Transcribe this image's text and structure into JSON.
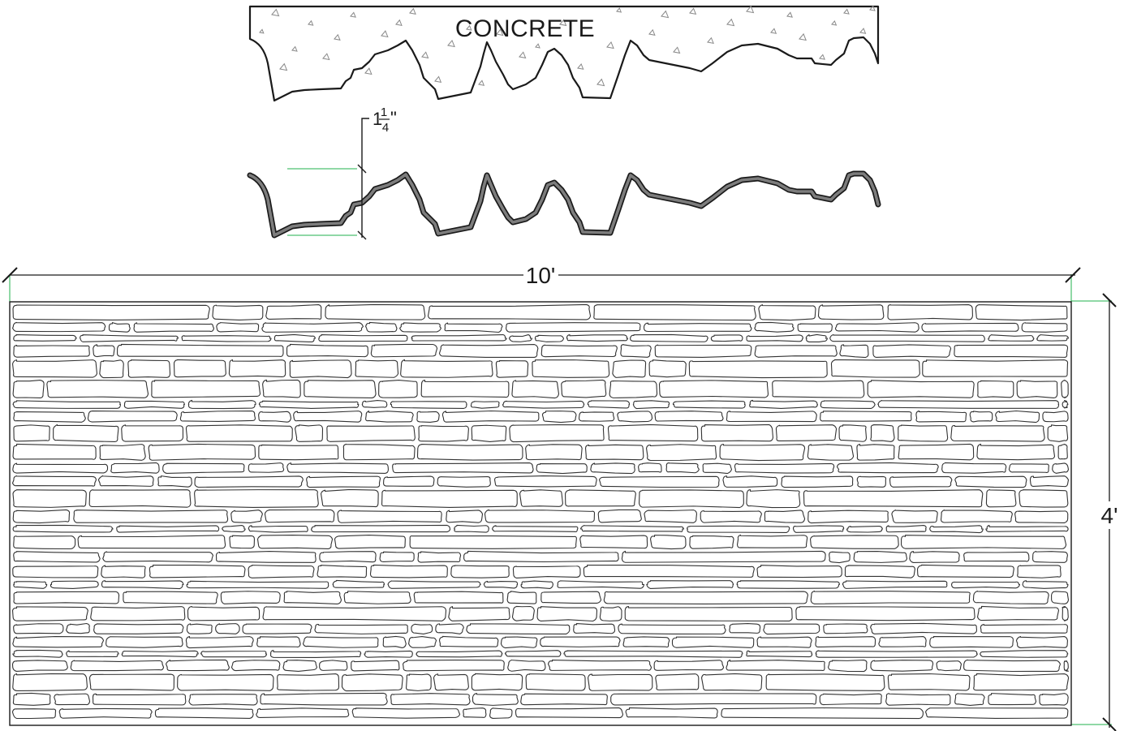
{
  "section": {
    "material_label": "CONCRETE"
  },
  "relief_depth": {
    "whole": "1",
    "numerator": "1",
    "denominator": "4",
    "unit_mark": "\""
  },
  "panel": {
    "width_label": "10'",
    "height_label": "4'",
    "pattern": "stacked-stone"
  },
  "colors": {
    "line": "#1a1a1a",
    "liner_fill": "#7d7d7d",
    "extension_line": "#22b14c",
    "aggregate": "#8a8a8a"
  }
}
